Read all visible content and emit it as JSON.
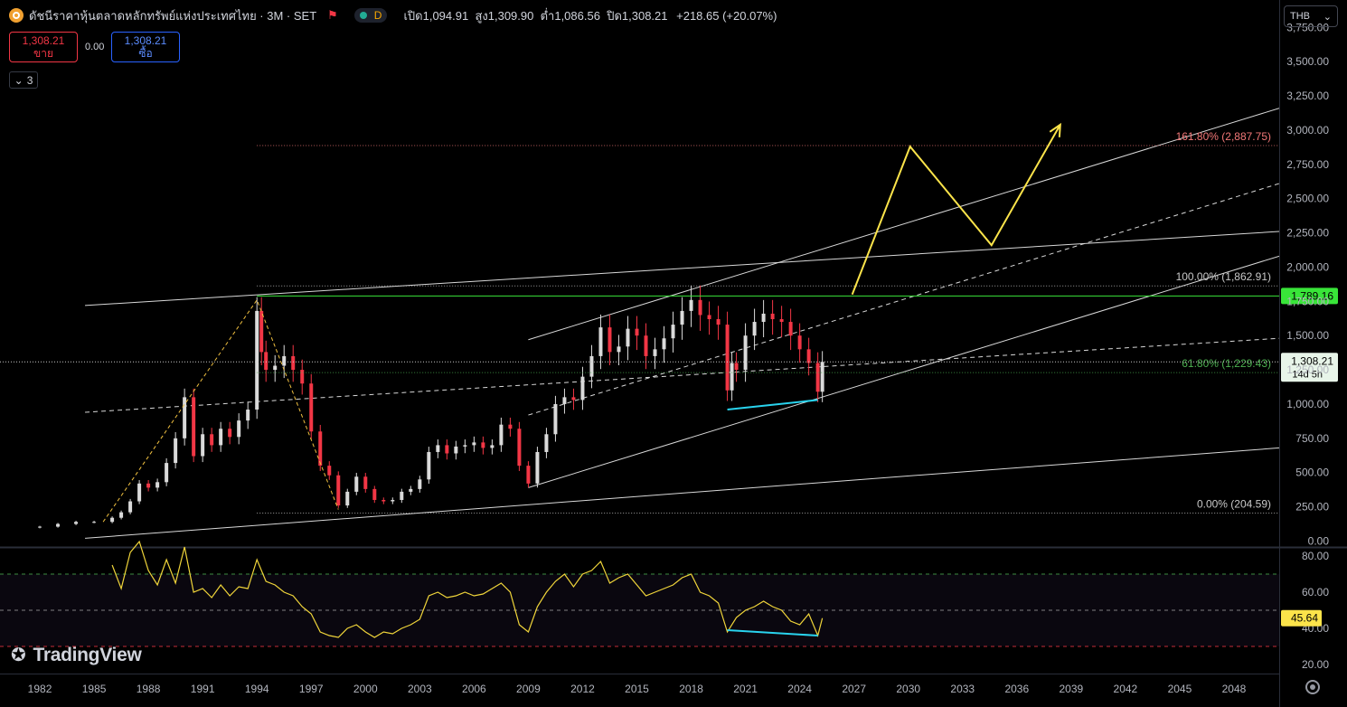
{
  "header": {
    "title": "ดัชนีราคาหุ้นตลาดหลักทรัพย์แห่งประเทศไทย · 3M · SET",
    "d_label": "D",
    "ohlc": {
      "open_label": "เปิด",
      "open": "1,094.91",
      "high_label": "สูง",
      "high": "1,309.90",
      "low_label": "ต่ำ",
      "low": "1,086.56",
      "close_label": "ปิด",
      "close": "1,308.21",
      "change": "+218.65 (+20.07%)"
    }
  },
  "trade": {
    "sell_price": "1,308.21",
    "sell_label": "ขาย",
    "spread": "0.00",
    "buy_price": "1,308.21",
    "buy_label": "ซื้อ"
  },
  "indicators_toggle": "3",
  "currency": "THB",
  "branding": "TradingView",
  "colors": {
    "up": "#dadada",
    "down": "#f23645",
    "accent_yellow": "#fce44a",
    "cyan": "#29d3ee",
    "green_line": "#39e539",
    "rsi_line": "#f0d53a"
  },
  "chart_data": [
    {
      "type": "candlestick",
      "symbol": "SET",
      "interval": "3M",
      "y_axis_ticks": [
        "0.00",
        "250.00",
        "500.00",
        "750.00",
        "1,000.00",
        "1,250.00",
        "1,500.00",
        "1,750.00",
        "2,000.00",
        "2,250.00",
        "2,500.00",
        "2,750.00",
        "3,000.00",
        "3,250.00",
        "3,500.00",
        "3,750.00"
      ],
      "ylim": [
        -30,
        3950
      ],
      "x_axis_ticks": [
        "1982",
        "1985",
        "1988",
        "1991",
        "1994",
        "1997",
        "2000",
        "2003",
        "2006",
        "2009",
        "2012",
        "2015",
        "2018",
        "2021",
        "2024",
        "2027",
        "2030",
        "2033",
        "2036",
        "2039",
        "2042",
        "2045",
        "2048"
      ],
      "xlim": [
        1979.8,
        2050.5
      ],
      "closes": [
        {
          "t": 1982.0,
          "c": 105
        },
        {
          "t": 1983.0,
          "c": 125
        },
        {
          "t": 1984.0,
          "c": 140
        },
        {
          "t": 1985.0,
          "c": 140
        },
        {
          "t": 1986.0,
          "c": 170
        },
        {
          "t": 1986.5,
          "c": 210
        },
        {
          "t": 1987.0,
          "c": 290
        },
        {
          "t": 1987.5,
          "c": 420
        },
        {
          "t": 1988.0,
          "c": 390
        },
        {
          "t": 1988.5,
          "c": 430
        },
        {
          "t": 1989.0,
          "c": 570
        },
        {
          "t": 1989.5,
          "c": 750
        },
        {
          "t": 1990.0,
          "c": 1050
        },
        {
          "t": 1990.5,
          "c": 620
        },
        {
          "t": 1991.0,
          "c": 780
        },
        {
          "t": 1991.5,
          "c": 700
        },
        {
          "t": 1992.0,
          "c": 820
        },
        {
          "t": 1992.5,
          "c": 760
        },
        {
          "t": 1993.0,
          "c": 880
        },
        {
          "t": 1993.5,
          "c": 960
        },
        {
          "t": 1994.0,
          "c": 1680
        },
        {
          "t": 1994.25,
          "c": 1380
        },
        {
          "t": 1994.5,
          "c": 1250
        },
        {
          "t": 1995.0,
          "c": 1280
        },
        {
          "t": 1995.5,
          "c": 1350
        },
        {
          "t": 1996.0,
          "c": 1250
        },
        {
          "t": 1996.5,
          "c": 1150
        },
        {
          "t": 1997.0,
          "c": 800
        },
        {
          "t": 1997.5,
          "c": 550
        },
        {
          "t": 1998.0,
          "c": 480
        },
        {
          "t": 1998.5,
          "c": 260
        },
        {
          "t": 1999.0,
          "c": 360
        },
        {
          "t": 1999.5,
          "c": 470
        },
        {
          "t": 2000.0,
          "c": 380
        },
        {
          "t": 2000.5,
          "c": 300
        },
        {
          "t": 2001.0,
          "c": 290
        },
        {
          "t": 2001.5,
          "c": 300
        },
        {
          "t": 2002.0,
          "c": 360
        },
        {
          "t": 2002.5,
          "c": 380
        },
        {
          "t": 2003.0,
          "c": 450
        },
        {
          "t": 2003.5,
          "c": 650
        },
        {
          "t": 2004.0,
          "c": 700
        },
        {
          "t": 2004.5,
          "c": 640
        },
        {
          "t": 2005.0,
          "c": 690
        },
        {
          "t": 2005.5,
          "c": 700
        },
        {
          "t": 2006.0,
          "c": 720
        },
        {
          "t": 2006.5,
          "c": 680
        },
        {
          "t": 2007.0,
          "c": 700
        },
        {
          "t": 2007.5,
          "c": 850
        },
        {
          "t": 2008.0,
          "c": 820
        },
        {
          "t": 2008.5,
          "c": 550
        },
        {
          "t": 2009.0,
          "c": 420
        },
        {
          "t": 2009.5,
          "c": 650
        },
        {
          "t": 2010.0,
          "c": 780
        },
        {
          "t": 2010.5,
          "c": 1000
        },
        {
          "t": 2011.0,
          "c": 1050
        },
        {
          "t": 2011.5,
          "c": 1030
        },
        {
          "t": 2012.0,
          "c": 1200
        },
        {
          "t": 2012.5,
          "c": 1350
        },
        {
          "t": 2013.0,
          "c": 1560
        },
        {
          "t": 2013.5,
          "c": 1380
        },
        {
          "t": 2014.0,
          "c": 1420
        },
        {
          "t": 2014.5,
          "c": 1550
        },
        {
          "t": 2015.0,
          "c": 1500
        },
        {
          "t": 2015.5,
          "c": 1350
        },
        {
          "t": 2016.0,
          "c": 1400
        },
        {
          "t": 2016.5,
          "c": 1480
        },
        {
          "t": 2017.0,
          "c": 1580
        },
        {
          "t": 2017.5,
          "c": 1680
        },
        {
          "t": 2018.0,
          "c": 1760
        },
        {
          "t": 2018.5,
          "c": 1650
        },
        {
          "t": 2019.0,
          "c": 1620
        },
        {
          "t": 2019.5,
          "c": 1580
        },
        {
          "t": 2020.0,
          "c": 1100
        },
        {
          "t": 2020.25,
          "c": 1300
        },
        {
          "t": 2020.5,
          "c": 1250
        },
        {
          "t": 2021.0,
          "c": 1500
        },
        {
          "t": 2021.5,
          "c": 1600
        },
        {
          "t": 2022.0,
          "c": 1660
        },
        {
          "t": 2022.5,
          "c": 1620
        },
        {
          "t": 2023.0,
          "c": 1600
        },
        {
          "t": 2023.5,
          "c": 1500
        },
        {
          "t": 2024.0,
          "c": 1400
        },
        {
          "t": 2024.5,
          "c": 1300
        },
        {
          "t": 2025.0,
          "c": 1090
        },
        {
          "t": 2025.25,
          "c": 1308.21
        }
      ],
      "last_price_label": "1,308.21",
      "last_price_countdown": "14d 5h",
      "horizontal_level_label": "1,789.16",
      "fibonacci": [
        {
          "label": "161.80% (2,887.75)",
          "value": 2887.75
        },
        {
          "label": "100.00% (1,862.91)",
          "value": 1862.91
        },
        {
          "label": "61.80% (1,229.43)",
          "value": 1229.43
        },
        {
          "label": "0.00% (204.59)",
          "value": 204.59
        }
      ],
      "projection_path": [
        {
          "t": 2026.9,
          "v": 1800
        },
        {
          "t": 2030.1,
          "v": 2880
        },
        {
          "t": 2034.6,
          "v": 2160
        },
        {
          "t": 2038.4,
          "v": 3040
        }
      ]
    },
    {
      "type": "line",
      "name": "RSI",
      "y_axis_ticks": [
        "20.00",
        "40.00",
        "60.00",
        "80.00"
      ],
      "ylim": [
        15,
        84
      ],
      "levels": [
        70,
        50,
        30
      ],
      "last_value_label": "45.64",
      "values": [
        {
          "t": 1986.0,
          "v": 75
        },
        {
          "t": 1986.5,
          "v": 62
        },
        {
          "t": 1987.0,
          "v": 82
        },
        {
          "t": 1987.5,
          "v": 88
        },
        {
          "t": 1988.0,
          "v": 72
        },
        {
          "t": 1988.5,
          "v": 64
        },
        {
          "t": 1989.0,
          "v": 78
        },
        {
          "t": 1989.5,
          "v": 65
        },
        {
          "t": 1990.0,
          "v": 85
        },
        {
          "t": 1990.5,
          "v": 60
        },
        {
          "t": 1991.0,
          "v": 62
        },
        {
          "t": 1991.5,
          "v": 57
        },
        {
          "t": 1992.0,
          "v": 64
        },
        {
          "t": 1992.5,
          "v": 58
        },
        {
          "t": 1993.0,
          "v": 63
        },
        {
          "t": 1993.5,
          "v": 62
        },
        {
          "t": 1994.0,
          "v": 78
        },
        {
          "t": 1994.5,
          "v": 66
        },
        {
          "t": 1995.0,
          "v": 64
        },
        {
          "t": 1995.5,
          "v": 60
        },
        {
          "t": 1996.0,
          "v": 58
        },
        {
          "t": 1996.5,
          "v": 52
        },
        {
          "t": 1997.0,
          "v": 48
        },
        {
          "t": 1997.5,
          "v": 38
        },
        {
          "t": 1998.0,
          "v": 36
        },
        {
          "t": 1998.5,
          "v": 35
        },
        {
          "t": 1999.0,
          "v": 40
        },
        {
          "t": 1999.5,
          "v": 42
        },
        {
          "t": 2000.0,
          "v": 38
        },
        {
          "t": 2000.5,
          "v": 35
        },
        {
          "t": 2001.0,
          "v": 38
        },
        {
          "t": 2001.5,
          "v": 37
        },
        {
          "t": 2002.0,
          "v": 40
        },
        {
          "t": 2002.5,
          "v": 42
        },
        {
          "t": 2003.0,
          "v": 45
        },
        {
          "t": 2003.5,
          "v": 58
        },
        {
          "t": 2004.0,
          "v": 60
        },
        {
          "t": 2004.5,
          "v": 57
        },
        {
          "t": 2005.0,
          "v": 58
        },
        {
          "t": 2005.5,
          "v": 60
        },
        {
          "t": 2006.0,
          "v": 58
        },
        {
          "t": 2006.5,
          "v": 59
        },
        {
          "t": 2007.0,
          "v": 62
        },
        {
          "t": 2007.5,
          "v": 65
        },
        {
          "t": 2008.0,
          "v": 60
        },
        {
          "t": 2008.5,
          "v": 42
        },
        {
          "t": 2009.0,
          "v": 38
        },
        {
          "t": 2009.5,
          "v": 52
        },
        {
          "t": 2010.0,
          "v": 60
        },
        {
          "t": 2010.5,
          "v": 66
        },
        {
          "t": 2011.0,
          "v": 70
        },
        {
          "t": 2011.5,
          "v": 63
        },
        {
          "t": 2012.0,
          "v": 70
        },
        {
          "t": 2012.5,
          "v": 72
        },
        {
          "t": 2013.0,
          "v": 77
        },
        {
          "t": 2013.5,
          "v": 65
        },
        {
          "t": 2014.0,
          "v": 68
        },
        {
          "t": 2014.5,
          "v": 70
        },
        {
          "t": 2015.0,
          "v": 64
        },
        {
          "t": 2015.5,
          "v": 58
        },
        {
          "t": 2016.0,
          "v": 60
        },
        {
          "t": 2016.5,
          "v": 62
        },
        {
          "t": 2017.0,
          "v": 64
        },
        {
          "t": 2017.5,
          "v": 68
        },
        {
          "t": 2018.0,
          "v": 70
        },
        {
          "t": 2018.5,
          "v": 60
        },
        {
          "t": 2019.0,
          "v": 58
        },
        {
          "t": 2019.5,
          "v": 54
        },
        {
          "t": 2020.0,
          "v": 38
        },
        {
          "t": 2020.5,
          "v": 46
        },
        {
          "t": 2021.0,
          "v": 50
        },
        {
          "t": 2021.5,
          "v": 52
        },
        {
          "t": 2022.0,
          "v": 55
        },
        {
          "t": 2022.5,
          "v": 52
        },
        {
          "t": 2023.0,
          "v": 50
        },
        {
          "t": 2023.5,
          "v": 44
        },
        {
          "t": 2024.0,
          "v": 42
        },
        {
          "t": 2024.5,
          "v": 48
        },
        {
          "t": 2025.0,
          "v": 36
        },
        {
          "t": 2025.25,
          "v": 45.64
        }
      ]
    }
  ]
}
